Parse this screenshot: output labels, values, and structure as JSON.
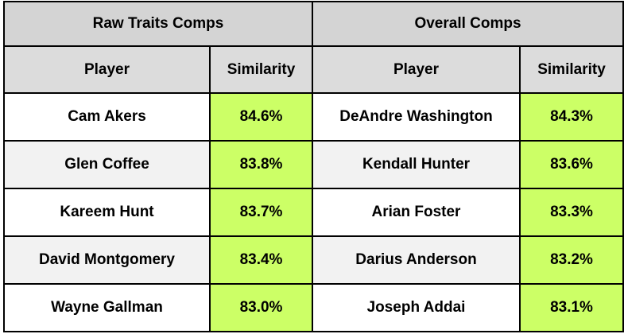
{
  "groups": {
    "raw": "Raw Traits Comps",
    "overall": "Overall Comps"
  },
  "columns": {
    "player": "Player",
    "similarity": "Similarity"
  },
  "colors": {
    "header_bg": "#d4d4d4",
    "similarity_bg": "#ccff66",
    "row_alt_bg": "#f2f2f2",
    "border": "#000000"
  },
  "rows": [
    {
      "raw_player": "Cam Akers",
      "raw_sim": "84.6%",
      "overall_player": "DeAndre Washington",
      "overall_sim": "84.3%"
    },
    {
      "raw_player": "Glen Coffee",
      "raw_sim": "83.8%",
      "overall_player": "Kendall Hunter",
      "overall_sim": "83.6%"
    },
    {
      "raw_player": "Kareem Hunt",
      "raw_sim": "83.7%",
      "overall_player": "Arian Foster",
      "overall_sim": "83.3%"
    },
    {
      "raw_player": "David Montgomery",
      "raw_sim": "83.4%",
      "overall_player": "Darius Anderson",
      "overall_sim": "83.2%"
    },
    {
      "raw_player": "Wayne Gallman",
      "raw_sim": "83.0%",
      "overall_player": "Joseph Addai",
      "overall_sim": "83.1%"
    }
  ]
}
